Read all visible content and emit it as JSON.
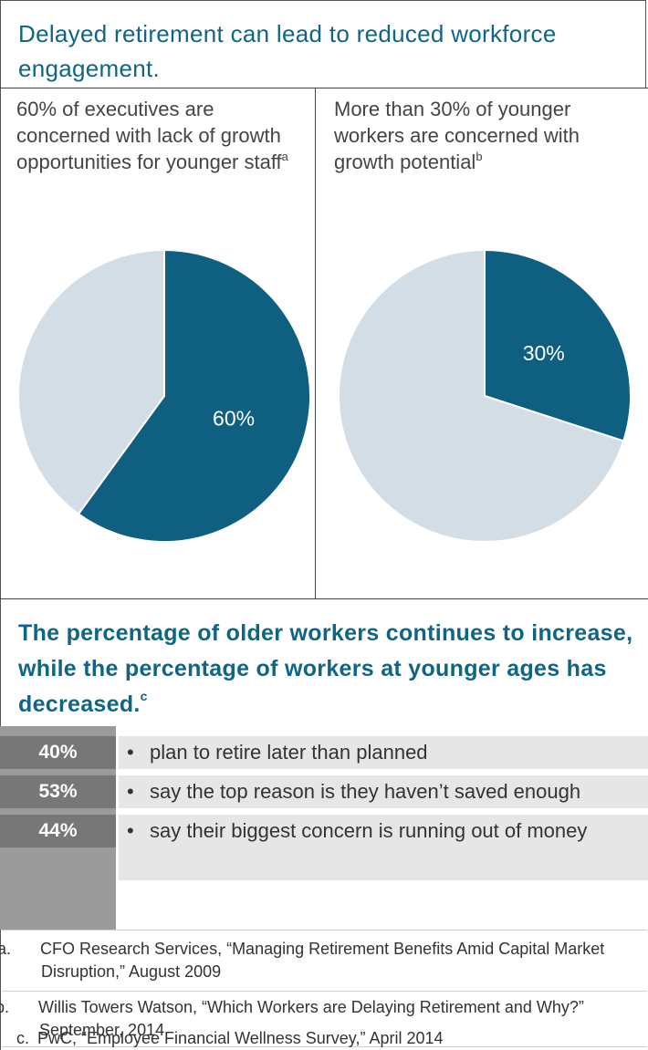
{
  "section1": {
    "title": "Delayed retirement can lead to reduced workforce engagement."
  },
  "colors": {
    "accent": "#0f6585",
    "pie_dark": "#0f5f80",
    "pie_light": "#d3dde6",
    "stat_gray": "#9c9b9b",
    "stat_bar": "#e6e6e6"
  },
  "chart_data": [
    {
      "type": "pie",
      "title": "60% of executives are concerned with lack of growth opportunities for younger staff",
      "title_sup": "a",
      "slices": [
        {
          "label": "60%",
          "value": 60,
          "color": "#0f5f80"
        },
        {
          "label": "",
          "value": 40,
          "color": "#d3dde6"
        }
      ]
    },
    {
      "type": "pie",
      "title": "More than 30% of younger workers are concerned with growth potential",
      "title_sup": "b",
      "slices": [
        {
          "label": "30%",
          "value": 30,
          "color": "#0f5f80"
        },
        {
          "label": "",
          "value": 70,
          "color": "#d3dde6"
        }
      ]
    }
  ],
  "section2": {
    "title": "The percentage of older workers continues to increase, while the percentage of workers at younger ages has decreased.",
    "title_sup": "c"
  },
  "stats": [
    {
      "value": "40%",
      "text": "plan to retire later than planned"
    },
    {
      "value": "53%",
      "text": "say the top reason is they haven’t saved enough"
    },
    {
      "value": "44%",
      "text": "say their biggest concern is running out of money"
    }
  ],
  "bullet": "•",
  "footnotes": [
    {
      "label": "a.",
      "text": "CFO Research Services, “Managing Retirement Benefits Amid Capital Market Disruption,” August 2009"
    },
    {
      "label": "b.",
      "text": "Willis Towers Watson, “Which Workers are Delaying Retirement and Why?” September, 2014"
    },
    {
      "label": "c.",
      "text": "PwC, “Employee Financial Wellness Survey,” April 2014"
    }
  ]
}
